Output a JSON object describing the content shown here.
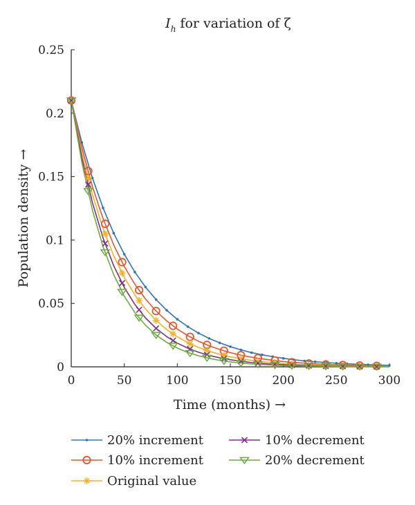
{
  "chart_data": {
    "type": "line",
    "title": {
      "symbol": "I",
      "subscript": "h",
      "rest": "for variation of ζ"
    },
    "xlabel": "Time (months) →",
    "ylabel": "Population density →",
    "xlim": [
      0,
      300
    ],
    "ylim": [
      0,
      0.25
    ],
    "xticks": [
      0,
      50,
      100,
      150,
      200,
      250,
      300
    ],
    "xtick_labels": [
      "0",
      "50",
      "100",
      "150",
      "200",
      "250",
      "300"
    ],
    "yticks": [
      0,
      0.05,
      0.1,
      0.15,
      0.2,
      0.25
    ],
    "ytick_labels": [
      "0",
      "0.05",
      "0.1",
      "0.15",
      "0.2",
      "0.25"
    ],
    "grid": false,
    "legend_position": "bottom",
    "x": [
      0,
      10,
      20,
      30,
      40,
      50,
      60,
      70,
      80,
      90,
      100,
      110,
      120,
      130,
      140,
      150,
      160,
      170,
      180,
      190,
      200,
      210,
      220,
      230,
      240,
      250,
      260,
      270,
      280,
      290,
      300
    ],
    "series": [
      {
        "name": "20% increment",
        "color": "#2e75b6",
        "marker": "dot",
        "values": [
          0.21,
          0.1768,
          0.1488,
          0.1253,
          0.1054,
          0.0888,
          0.0747,
          0.0629,
          0.053,
          0.0446,
          0.0375,
          0.0316,
          0.0266,
          0.0224,
          0.0189,
          0.0159,
          0.0134,
          0.0112,
          0.0095,
          0.008,
          0.0067,
          0.0056,
          0.0047,
          0.004,
          0.0034,
          0.0028,
          0.0024,
          0.002,
          0.0017,
          0.0014,
          0.0012
        ]
      },
      {
        "name": "10% increment",
        "color": "#e8552a",
        "marker": "circle",
        "values": [
          0.21,
          0.1728,
          0.1421,
          0.1169,
          0.0962,
          0.0791,
          0.0651,
          0.0535,
          0.044,
          0.0362,
          0.0298,
          0.0245,
          0.0202,
          0.0166,
          0.0137,
          0.0112,
          0.0092,
          0.0076,
          0.0063,
          0.0052,
          0.0042,
          0.0035,
          0.0029,
          0.0024,
          0.0019,
          0.0016,
          0.0013,
          0.0011,
          0.0009,
          0.0007,
          0.0006
        ]
      },
      {
        "name": "Original value",
        "color": "#f5b21e",
        "marker": "asterisk",
        "values": [
          0.21,
          0.1688,
          0.1357,
          0.1091,
          0.0877,
          0.0705,
          0.0567,
          0.0456,
          0.0366,
          0.0294,
          0.0237,
          0.019,
          0.0153,
          0.0123,
          0.0099,
          0.0079,
          0.0064,
          0.0051,
          0.0041,
          0.0033,
          0.0027,
          0.0021,
          0.0017,
          0.0014,
          0.0011,
          0.0009,
          0.0007,
          0.0006,
          0.0005,
          0.0004,
          0.0003
        ]
      },
      {
        "name": "10% decrement",
        "color": "#7b2f8e",
        "marker": "x",
        "values": [
          0.21,
          0.1649,
          0.1294,
          0.1016,
          0.0798,
          0.0626,
          0.0492,
          0.0386,
          0.0303,
          0.0238,
          0.0187,
          0.0147,
          0.0115,
          0.009,
          0.0071,
          0.0056,
          0.0044,
          0.0034,
          0.0027,
          0.0021,
          0.0017,
          0.0013,
          0.001,
          0.0008,
          0.0006,
          0.0005,
          0.0004,
          0.0003,
          0.0002,
          0.0002,
          0.0001
        ]
      },
      {
        "name": "20% decrement",
        "color": "#6dab3c",
        "marker": "triangle-down",
        "values": [
          0.21,
          0.1611,
          0.1235,
          0.0947,
          0.0727,
          0.0557,
          0.0427,
          0.0328,
          0.0251,
          0.0193,
          0.0148,
          0.0113,
          0.0087,
          0.0067,
          0.0051,
          0.0039,
          0.003,
          0.0023,
          0.0018,
          0.0014,
          0.001,
          0.0008,
          0.0006,
          0.0005,
          0.0004,
          0.0003,
          0.0002,
          0.0002,
          0.0001,
          0.0001,
          0.0001
        ]
      }
    ]
  }
}
